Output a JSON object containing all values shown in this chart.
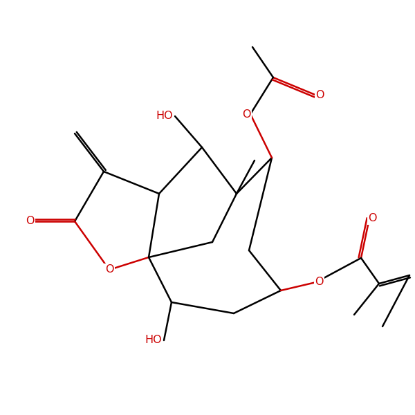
{
  "bg_color": "#ffffff",
  "bond_color": "#000000",
  "red_color": "#cc0000",
  "line_width": 1.8,
  "fig_size": [
    6.0,
    6.0
  ],
  "dpi": 100,
  "xlim": [
    0,
    10
  ],
  "ylim": [
    0,
    10
  ]
}
